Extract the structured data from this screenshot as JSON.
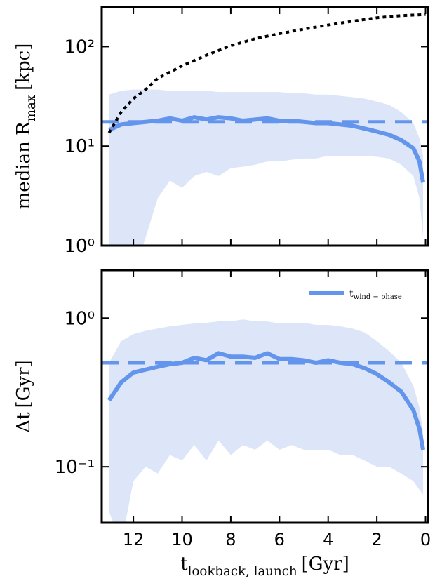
{
  "chart_data": [
    {
      "type": "line",
      "yscale": "log",
      "ylabel": {
        "text": "median R",
        "sub": "max",
        "unit": "[kpc]"
      },
      "xlim": [
        13.3,
        -0.1
      ],
      "ylim": [
        1,
        250
      ],
      "yticks": [
        {
          "value": 1,
          "label": "10⁰"
        },
        {
          "value": 10,
          "label": "10¹"
        },
        {
          "value": 100,
          "label": "10²"
        }
      ],
      "x": [
        13,
        12.5,
        12,
        11.5,
        11,
        10.5,
        10,
        9.5,
        9,
        8.5,
        8,
        7.5,
        7,
        6.5,
        6,
        5.5,
        5,
        4.5,
        4,
        3.5,
        3,
        2.5,
        2,
        1.5,
        1,
        0.5,
        0.25,
        0.1
      ],
      "series": [
        {
          "color": "#6495ed",
          "band_color": "#dce6f8",
          "values": [
            14.5,
            16.5,
            17,
            17.5,
            18,
            19,
            18,
            19.5,
            18.5,
            19.5,
            19,
            18,
            18.5,
            19,
            18,
            18,
            17.5,
            17,
            17,
            16.5,
            16,
            15,
            14,
            13,
            11.5,
            9.5,
            7,
            4.3
          ],
          "upper": [
            33,
            36,
            37,
            37,
            37,
            36,
            36,
            36,
            36,
            35,
            35,
            35,
            35,
            35,
            35,
            34,
            34,
            33,
            33,
            32,
            31,
            30,
            28,
            26,
            22,
            17,
            12,
            8
          ],
          "lower": [
            0.6,
            0.5,
            0.5,
            1.2,
            3,
            4.5,
            3.8,
            5,
            5.5,
            5,
            6,
            6.2,
            6.5,
            7,
            7,
            7.3,
            7.5,
            7.5,
            8,
            8,
            8,
            8,
            7.8,
            7.5,
            6.5,
            5,
            3,
            1.2
          ]
        },
        {
          "color": "#000000",
          "style": "dotted",
          "x": [
            13,
            12.5,
            12,
            11.5,
            11,
            10,
            9,
            8,
            7,
            6,
            5,
            4,
            3,
            2,
            1,
            0
          ],
          "values": [
            13.6,
            22,
            30,
            37,
            48,
            64,
            82,
            102,
            120,
            135,
            150,
            165,
            180,
            195,
            205,
            210
          ]
        }
      ],
      "reference": {
        "value": 17.5,
        "color": "#6495ed"
      }
    },
    {
      "type": "line",
      "yscale": "log",
      "ylabel": {
        "text": "Δt",
        "unit": "[Gyr]"
      },
      "xlabel": {
        "text": "t",
        "sub": "lookback, launch",
        "unit": "[Gyr]"
      },
      "xlim": [
        13.3,
        -0.1
      ],
      "ylim": [
        0.042,
        2.1
      ],
      "xticks": [
        12,
        10,
        8,
        6,
        4,
        2,
        0
      ],
      "yticks": [
        {
          "value": 0.1,
          "label": "10⁻¹"
        },
        {
          "value": 1,
          "label": "10⁰"
        }
      ],
      "legend": "upper right",
      "x": [
        13,
        12.5,
        12,
        11.5,
        11,
        10.5,
        10,
        9.5,
        9,
        8.5,
        8,
        7.5,
        7,
        6.5,
        6,
        5.5,
        5,
        4.5,
        4,
        3.5,
        3,
        2.5,
        2,
        1.5,
        1,
        0.5,
        0.25,
        0.1
      ],
      "series": [
        {
          "name": "t",
          "name_sub": "wind − phase",
          "color": "#6495ed",
          "band_color": "#dce6f8",
          "values": [
            0.28,
            0.37,
            0.43,
            0.45,
            0.47,
            0.49,
            0.5,
            0.54,
            0.52,
            0.58,
            0.55,
            0.55,
            0.54,
            0.58,
            0.53,
            0.53,
            0.52,
            0.5,
            0.52,
            0.5,
            0.49,
            0.46,
            0.42,
            0.37,
            0.32,
            0.24,
            0.18,
            0.13
          ],
          "upper": [
            0.5,
            0.7,
            0.78,
            0.82,
            0.85,
            0.88,
            0.9,
            0.92,
            0.93,
            0.95,
            0.95,
            0.98,
            0.95,
            0.95,
            0.92,
            0.92,
            0.93,
            0.9,
            0.9,
            0.88,
            0.85,
            0.8,
            0.7,
            0.6,
            0.5,
            0.35,
            0.25,
            0.17
          ],
          "lower": [
            0.05,
            0.03,
            0.08,
            0.1,
            0.09,
            0.12,
            0.11,
            0.14,
            0.11,
            0.15,
            0.12,
            0.14,
            0.13,
            0.15,
            0.13,
            0.14,
            0.13,
            0.13,
            0.13,
            0.12,
            0.12,
            0.11,
            0.1,
            0.1,
            0.09,
            0.08,
            0.07,
            0.065
          ]
        }
      ],
      "reference": {
        "value": 0.5,
        "color": "#6495ed"
      }
    }
  ]
}
